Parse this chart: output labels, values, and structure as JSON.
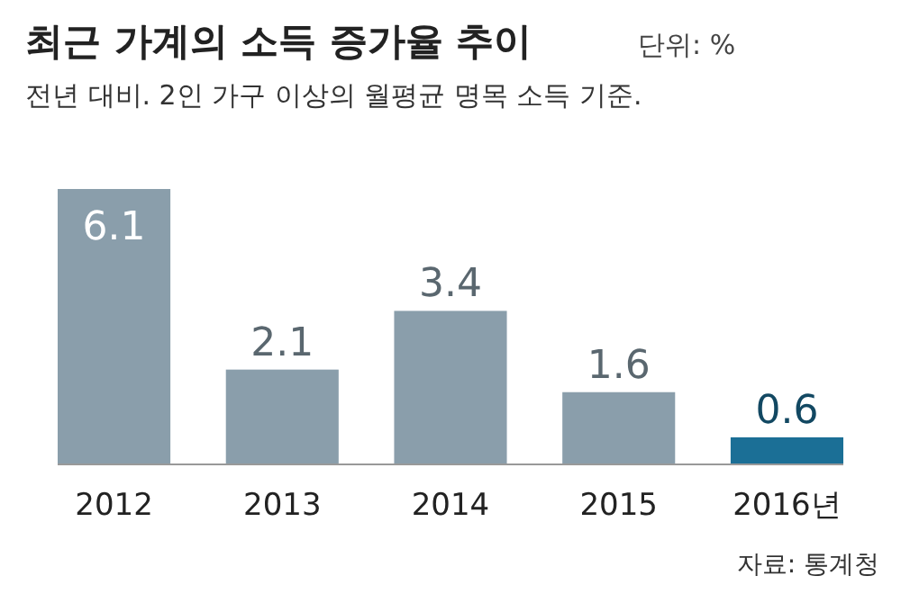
{
  "chart_data": {
    "type": "bar",
    "title": "최근 가계의 소득 증가율 추이",
    "subtitle": "전년 대비. 2인 가구 이상의 월평균 명목 소득 기준.",
    "annotations": [
      "단위: %",
      "자료: 통계청"
    ],
    "categories": [
      "2012",
      "2013",
      "2014",
      "2015",
      "2016년"
    ],
    "values": [
      6.1,
      2.1,
      3.4,
      1.6,
      0.6
    ],
    "colors": [
      "#8a9eab",
      "#8a9eab",
      "#8a9eab",
      "#8a9eab",
      "#1b6f96"
    ],
    "data_labels": true
  }
}
